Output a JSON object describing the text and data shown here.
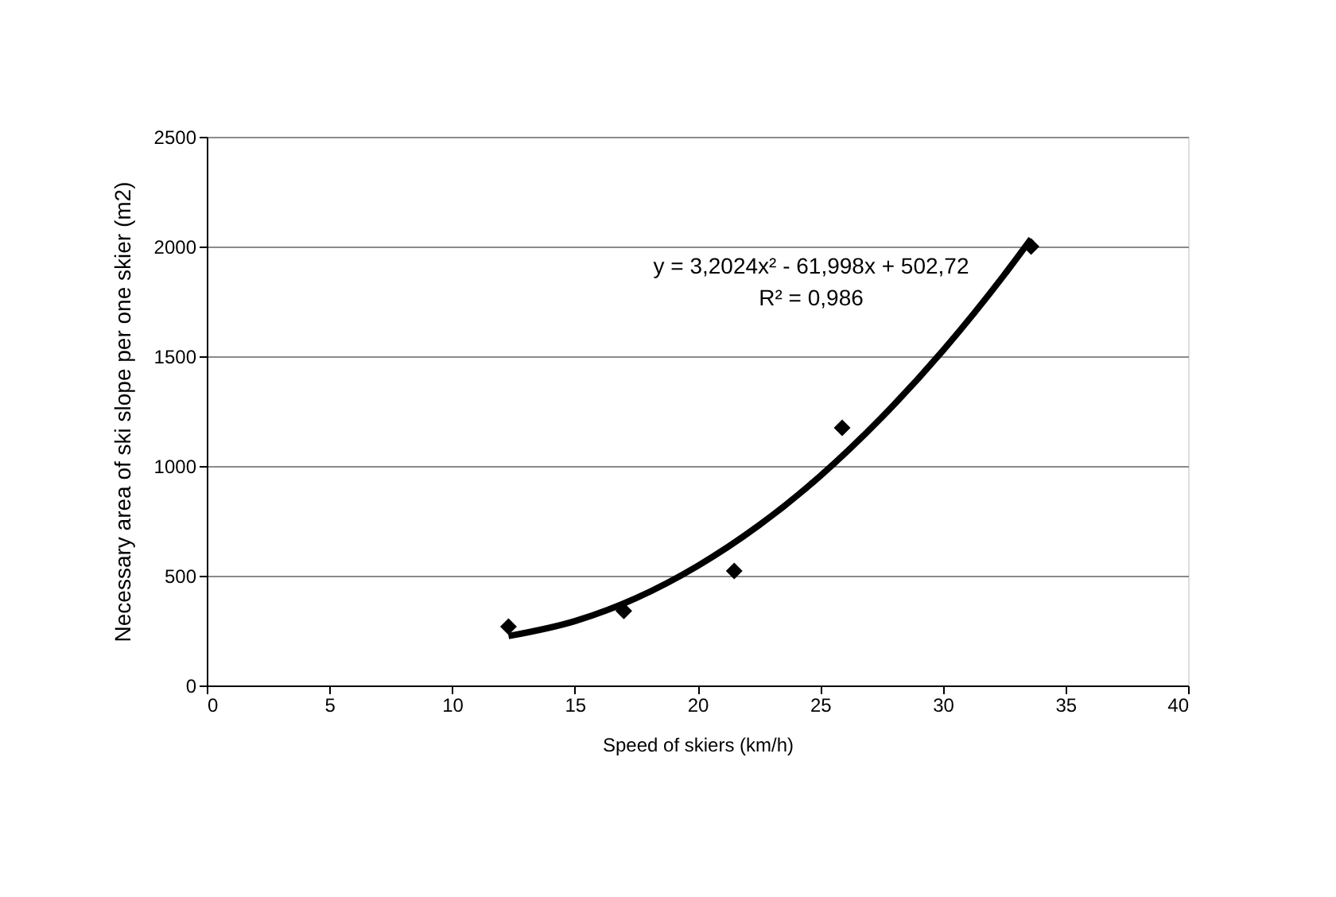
{
  "chart_data": {
    "type": "scatter",
    "xlabel": "Speed of skiers (km/h)",
    "ylabel": "Necessary area of ski slope per one skier (m2)",
    "xlim": [
      0,
      40
    ],
    "xticks": [
      0,
      5,
      10,
      15,
      20,
      25,
      30,
      35,
      40
    ],
    "ylim": [
      0,
      2500
    ],
    "yticks": [
      0,
      500,
      1000,
      1500,
      2000,
      2500
    ],
    "grid": "y",
    "series": [
      {
        "marker": "diamond",
        "color": "#000000",
        "x": [
          12.3,
          17,
          21.5,
          25.9,
          33.6
        ],
        "values": [
          268,
          340,
          522,
          1174,
          2000
        ]
      },
      {
        "type": "line",
        "line_style": "solid",
        "marker": "none",
        "color": "#000000",
        "x": [
          12.3,
          15,
          17.5,
          20,
          22.5,
          25,
          27.5,
          30,
          32.5,
          33.6
        ],
        "values": [
          225,
          293,
          398,
          544,
          729,
          954,
          1220,
          1525,
          1870,
          2035
        ]
      }
    ],
    "annotations": [
      "y = 3,2024x² - 61,998x + 502,72",
      "R² = 0,986"
    ]
  }
}
